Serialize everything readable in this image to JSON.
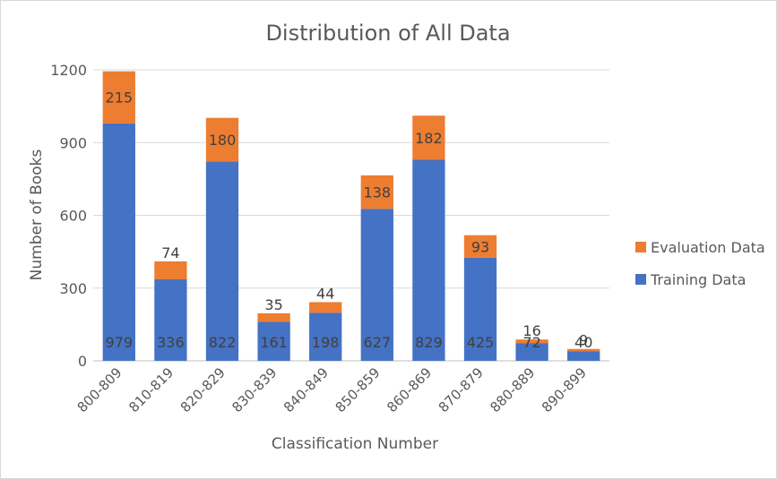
{
  "chart_data": {
    "type": "bar",
    "stacked": true,
    "title": "Distribution of All Data",
    "xlabel": "Classification Number",
    "ylabel": "Number of Books",
    "ylim": [
      0,
      1200
    ],
    "yticks": [
      "0",
      "300",
      "600",
      "900",
      "1200"
    ],
    "grid": true,
    "legend_position": "right",
    "categories": [
      "800-809",
      "810-819",
      "820-829",
      "830-839",
      "840-849",
      "850-859",
      "860-869",
      "870-879",
      "880-889",
      "890-899"
    ],
    "series": [
      {
        "name": "Training Data",
        "color": "#4472c4",
        "values": [
          979,
          336,
          822,
          161,
          198,
          627,
          829,
          425,
          72,
          40
        ]
      },
      {
        "name": "Evaluation Data",
        "color": "#ed7d31",
        "values": [
          215,
          74,
          180,
          35,
          44,
          138,
          182,
          93,
          16,
          9
        ]
      }
    ]
  }
}
